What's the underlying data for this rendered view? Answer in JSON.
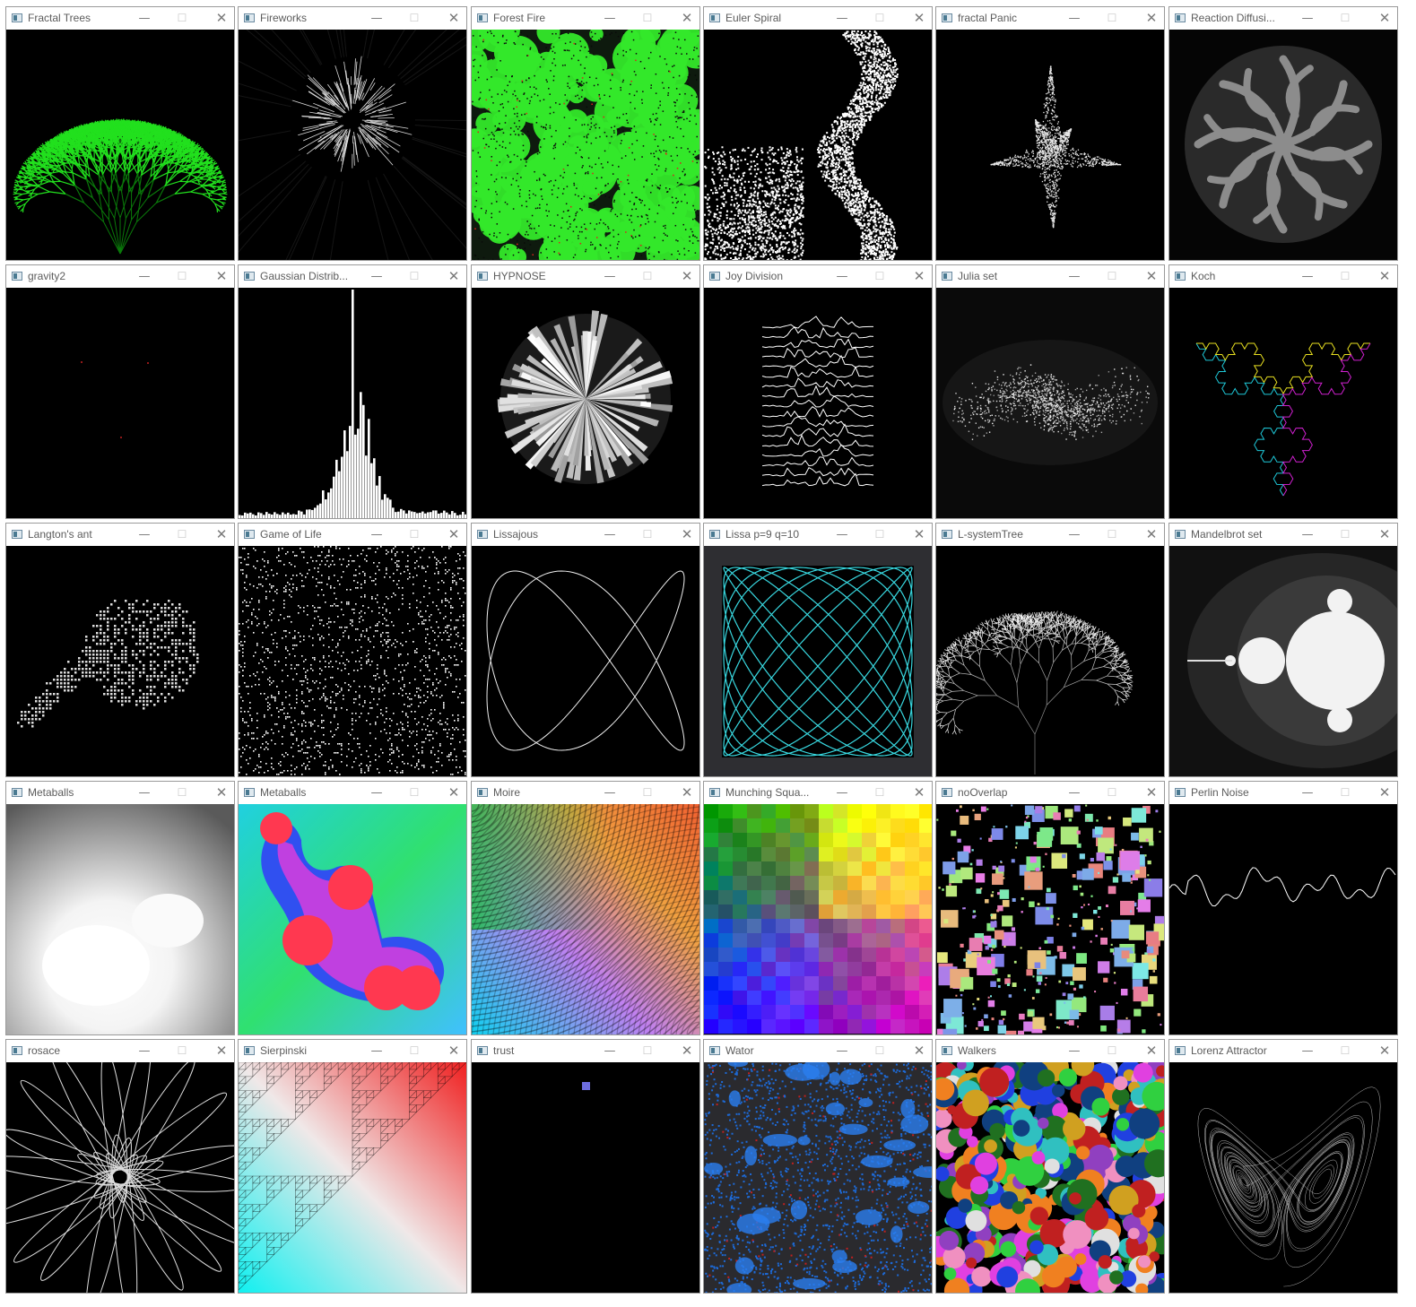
{
  "controls": {
    "minimize": "—",
    "maximize": "☐",
    "close": "✕"
  },
  "windows": [
    {
      "title": "Fractal Trees",
      "icon": "app-window-icon"
    },
    {
      "title": "Fireworks",
      "icon": "app-window-icon"
    },
    {
      "title": "Forest Fire",
      "icon": "app-window-icon"
    },
    {
      "title": "Euler Spiral",
      "icon": "app-window-icon"
    },
    {
      "title": "fractal Panic",
      "icon": "app-window-icon"
    },
    {
      "title": "Reaction Diffusi...",
      "icon": "app-window-icon"
    },
    {
      "title": "gravity2",
      "icon": "app-window-icon"
    },
    {
      "title": "Gaussian Distrib...",
      "icon": "app-window-icon"
    },
    {
      "title": "HYPNOSE",
      "icon": "app-window-icon"
    },
    {
      "title": "Joy Division",
      "icon": "app-window-icon"
    },
    {
      "title": "Julia set",
      "icon": "app-window-icon"
    },
    {
      "title": "Koch",
      "icon": "app-window-icon"
    },
    {
      "title": "Langton's ant",
      "icon": "app-window-icon"
    },
    {
      "title": "Game of Life",
      "icon": "app-window-icon"
    },
    {
      "title": "Lissajous",
      "icon": "app-window-icon"
    },
    {
      "title": "Lissa p=9  q=10",
      "icon": "app-window-icon"
    },
    {
      "title": "L-systemTree",
      "icon": "app-window-icon"
    },
    {
      "title": "Mandelbrot set",
      "icon": "app-window-icon"
    },
    {
      "title": "Metaballs",
      "icon": "app-window-icon"
    },
    {
      "title": "Metaballs",
      "icon": "app-window-icon"
    },
    {
      "title": "Moire",
      "icon": "app-window-icon"
    },
    {
      "title": "Munching Squa...",
      "icon": "app-window-icon"
    },
    {
      "title": "noOverlap",
      "icon": "app-window-icon"
    },
    {
      "title": "Perlin Noise",
      "icon": "app-window-icon"
    },
    {
      "title": "rosace",
      "icon": "app-window-icon"
    },
    {
      "title": "Sierpinski",
      "icon": "app-window-icon"
    },
    {
      "title": "trust",
      "icon": "app-window-icon"
    },
    {
      "title": "Wator",
      "icon": "app-window-icon"
    },
    {
      "title": "Walkers",
      "icon": "app-window-icon"
    },
    {
      "title": "Lorenz Attractor",
      "icon": "app-window-icon"
    }
  ]
}
